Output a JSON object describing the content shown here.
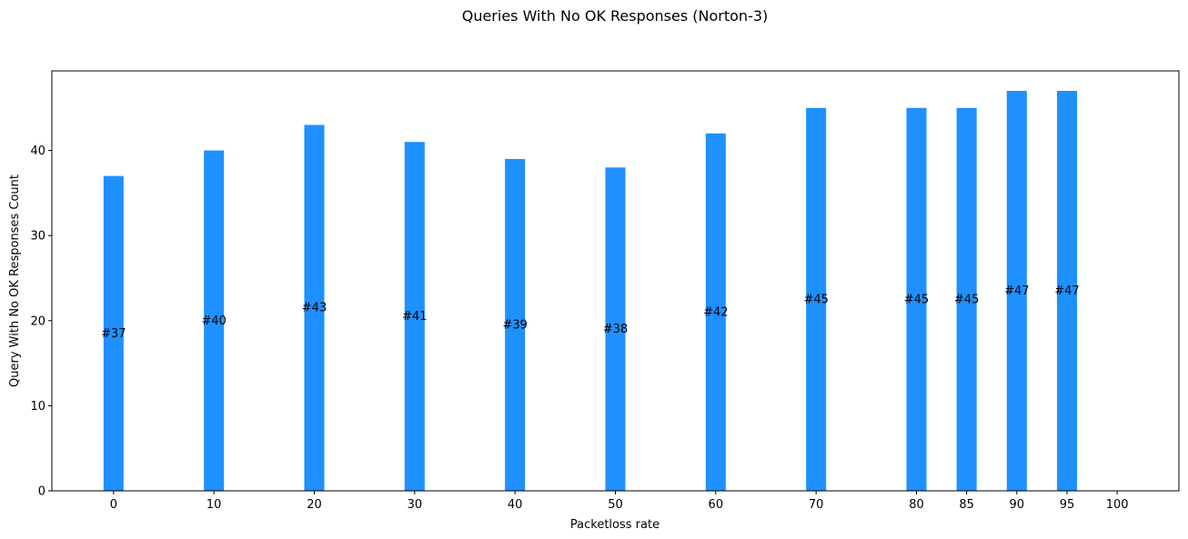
{
  "chart_data": {
    "type": "bar",
    "title": "Queries With No OK Responses (Norton-3)",
    "xlabel": "Packetloss rate",
    "ylabel": "Query With No OK Responses Count",
    "x": [
      0,
      10,
      20,
      30,
      40,
      50,
      60,
      70,
      80,
      85,
      90,
      95,
      100
    ],
    "values": [
      37,
      40,
      43,
      41,
      39,
      38,
      42,
      45,
      45,
      45,
      47,
      47,
      0
    ],
    "data_labels": [
      "#37",
      "#40",
      "#43",
      "#41",
      "#39",
      "#38",
      "#42",
      "#45",
      "#45",
      "#45",
      "#47",
      "#47",
      ""
    ],
    "xticks": [
      "0",
      "10",
      "20",
      "30",
      "40",
      "50",
      "60",
      "70",
      "80",
      "85",
      "90",
      "95",
      "100"
    ],
    "yticks": [
      "0",
      "10",
      "20",
      "30",
      "40"
    ],
    "ylim": [
      0,
      49.35
    ],
    "xlim": [
      -6.15,
      106.15
    ],
    "bar_width": 2,
    "grid": false,
    "color": "#1e90ff"
  }
}
